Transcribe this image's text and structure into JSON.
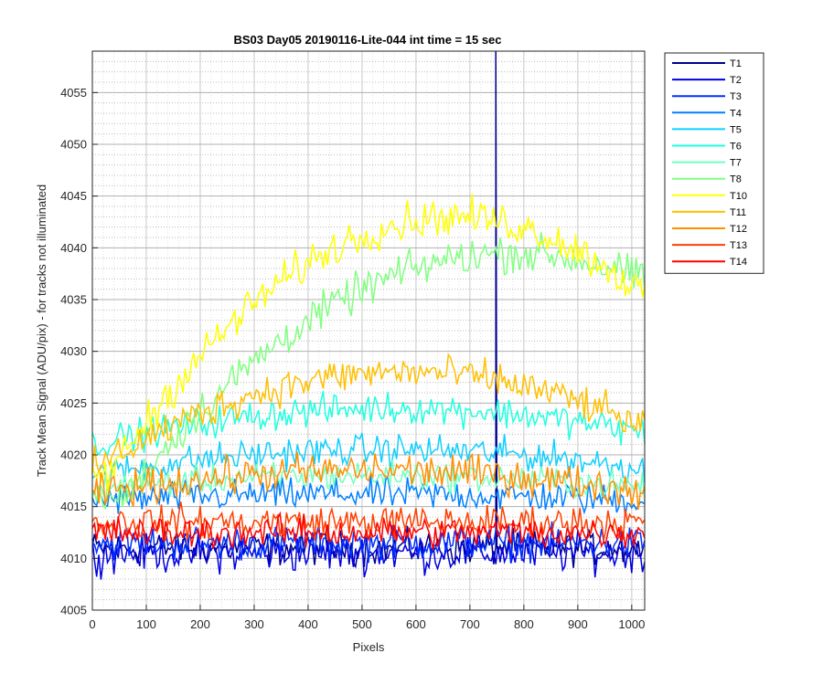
{
  "chart_data": {
    "type": "line",
    "title": "BS03 Day05 20190116-Lite-044 int time = 15 sec",
    "xlabel": "Pixels",
    "ylabel": "Track Mean Signal (ADU/pix) - for tracks not illuminated",
    "xlim": [
      0,
      1024
    ],
    "ylim": [
      4005,
      4059
    ],
    "xticks": [
      0,
      100,
      200,
      300,
      400,
      500,
      600,
      700,
      800,
      900,
      1000
    ],
    "yticks": [
      4005,
      4010,
      4015,
      4020,
      4025,
      4030,
      4035,
      4040,
      4045,
      4050,
      4055
    ],
    "grid": "major and minor, dotted",
    "legend_position": "outside top-right",
    "x_sampling": "every 4 pixels from 0 to 1024",
    "series": [
      {
        "name": "T1",
        "color": "#00008F",
        "shape": "flat",
        "base": 4011.0,
        "amp": 0,
        "center": 512,
        "halfwidth": 700,
        "noise": 1.6,
        "spike_at": 748,
        "spike_to": 4060
      },
      {
        "name": "T2",
        "color": "#0000DF",
        "shape": "flat",
        "base": 4010.5,
        "amp": 0,
        "center": 512,
        "halfwidth": 700,
        "noise": 1.8
      },
      {
        "name": "T3",
        "color": "#0030FF",
        "shape": "flat",
        "base": 4011.5,
        "amp": 0,
        "center": 512,
        "halfwidth": 700,
        "noise": 1.6
      },
      {
        "name": "T4",
        "color": "#0080FF",
        "shape": "bump",
        "base": 4015.0,
        "amp": 1.2,
        "center": 500,
        "halfwidth": 700,
        "noise": 1.5
      },
      {
        "name": "T5",
        "color": "#10CFFF",
        "shape": "bump",
        "base": 4017.0,
        "amp": 3.5,
        "center": 550,
        "halfwidth": 650,
        "noise": 1.5
      },
      {
        "name": "T6",
        "color": "#20FFDF",
        "shape": "bump",
        "base": 4019.0,
        "amp": 5.5,
        "center": 560,
        "halfwidth": 700,
        "noise": 1.5
      },
      {
        "name": "T7",
        "color": "#70FFC0",
        "shape": "bump",
        "base": 4016.0,
        "amp": 2.0,
        "center": 520,
        "halfwidth": 650,
        "noise": 1.4
      },
      {
        "name": "T8",
        "color": "#80FF80",
        "shape": "bump",
        "base": 4016.0,
        "amp": 23.5,
        "center": 780,
        "halfwidth": 720,
        "noise": 1.8
      },
      {
        "name": "T10",
        "color": "#FFFF00",
        "shape": "bump",
        "base": 4018.0,
        "amp": 25.0,
        "center": 670,
        "halfwidth": 640,
        "noise": 1.8
      },
      {
        "name": "T11",
        "color": "#FFC000",
        "shape": "bump",
        "base": 4018.0,
        "amp": 10.0,
        "center": 580,
        "halfwidth": 600,
        "noise": 1.7
      },
      {
        "name": "T12",
        "color": "#FF8F00",
        "shape": "bump",
        "base": 4015.5,
        "amp": 3.0,
        "center": 520,
        "halfwidth": 600,
        "noise": 1.7
      },
      {
        "name": "T13",
        "color": "#FF4000",
        "shape": "flat",
        "base": 4013.5,
        "amp": 0,
        "center": 512,
        "halfwidth": 700,
        "noise": 1.6
      },
      {
        "name": "T14",
        "color": "#FF0000",
        "shape": "flat",
        "base": 4012.5,
        "amp": 0,
        "center": 512,
        "halfwidth": 700,
        "noise": 1.5
      }
    ]
  }
}
